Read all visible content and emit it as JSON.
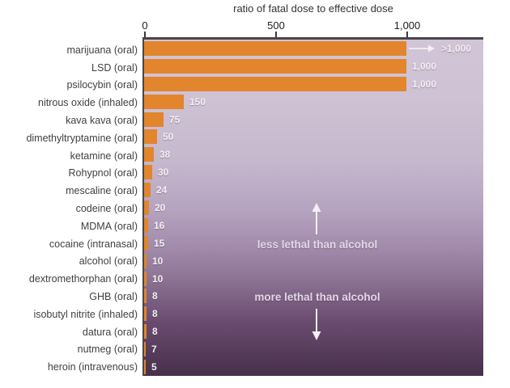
{
  "title": "ratio of fatal dose to effective dose",
  "axis": {
    "ticks": [
      {
        "label": "0",
        "value": 0
      },
      {
        "label": "500",
        "value": 500
      },
      {
        "label": "1,000",
        "value": 1000
      }
    ],
    "min": 0,
    "max": 1000
  },
  "annotations": {
    "less": "less lethal than alcohol",
    "more": "more lethal than alcohol"
  },
  "colors": {
    "bar": "#e2852d",
    "gradient_top": "#d0c4d6",
    "gradient_bottom": "#46304a",
    "category_text": "#414141",
    "value_text": "#f3eff3",
    "annotation_text": "#e2d8e4",
    "border": "#4a454b"
  },
  "chart_data": {
    "type": "bar",
    "orientation": "horizontal",
    "title": "ratio of fatal dose to effective dose",
    "xlabel": "ratio of fatal dose to effective dose",
    "xlim": [
      0,
      1000
    ],
    "grid": false,
    "legend": false,
    "categories": [
      "marijuana (oral)",
      "LSD (oral)",
      "psilocybin (oral)",
      "nitrous oxide (inhaled)",
      "kava kava (oral)",
      "dimethyltryptamine (oral)",
      "ketamine (oral)",
      "Rohypnol (oral)",
      "mescaline (oral)",
      "codeine (oral)",
      "MDMA (oral)",
      "cocaine (intranasal)",
      "alcohol (oral)",
      "dextromethorphan (oral)",
      "GHB (oral)",
      "isobutyl nitrite (inhaled)",
      "datura (oral)",
      "nutmeg (oral)",
      "heroin (intravenous)"
    ],
    "values": [
      1000,
      1000,
      1000,
      150,
      75,
      50,
      38,
      30,
      24,
      20,
      16,
      15,
      10,
      10,
      8,
      8,
      8,
      7,
      5
    ],
    "value_labels": [
      ">1,000",
      "1,000",
      "1,000",
      "150",
      "75",
      "50",
      "38",
      "30",
      "24",
      "20",
      "16",
      "15",
      "10",
      "10",
      "8",
      "8",
      "8",
      "7",
      "5"
    ],
    "overflow_arrow_row": 0,
    "annotations": [
      "less lethal than alcohol",
      "more lethal than alcohol"
    ]
  }
}
